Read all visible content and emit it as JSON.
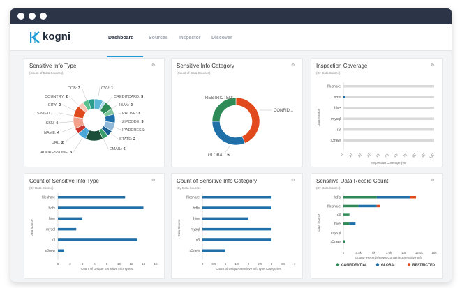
{
  "app": {
    "brand": "kogni"
  },
  "tabs": [
    {
      "label": "Dashboard",
      "active": true
    },
    {
      "label": "Sources",
      "active": false
    },
    {
      "label": "Inspector",
      "active": false
    },
    {
      "label": "Discover",
      "active": false
    }
  ],
  "colors": {
    "accent": "#1e9bd7",
    "titlebar": "#2c3547",
    "confidential": "#2e8b57",
    "global": "#1f6fa8",
    "restricted": "#e04a1c",
    "bar": "#1f6fa8"
  },
  "icons": {
    "settings": "gear-icon"
  },
  "cards": {
    "sensitive_info_type": {
      "title": "Sensitive Info Type",
      "subtitle": "(Count of Data Sources)"
    },
    "sensitive_info_category": {
      "title": "Sensitive Info Category",
      "subtitle": "(Count of Data Sources)"
    },
    "inspection_coverage": {
      "title": "Inspection Coverage",
      "subtitle": "(By Data Source)"
    },
    "count_sensitive_info_type": {
      "title": "Count of Sensitive Info Type",
      "subtitle": "(By Data Source)"
    },
    "count_sensitive_info_category": {
      "title": "Count of Sensitive Info Category",
      "subtitle": "(By Data Source)"
    },
    "sensitive_record_count": {
      "title": "Sensitive Data Record Count",
      "subtitle": "(By Data Source)"
    }
  },
  "chart_data": [
    {
      "id": "info_type",
      "type": "pie",
      "title": "Sensitive Info Type",
      "labels": [
        {
          "text": "DOB:",
          "value": "3"
        },
        {
          "text": "CVV:",
          "value": "1"
        },
        {
          "text": "COUNTRY:",
          "value": "2"
        },
        {
          "text": "CREDITCARD:",
          "value": "3"
        },
        {
          "text": "CITY:",
          "value": "2"
        },
        {
          "text": "IBAN:",
          "value": "2"
        },
        {
          "text": "SWIFTCO...",
          "value": ""
        },
        {
          "text": "PHONE:",
          "value": "3"
        },
        {
          "text": "SSN:",
          "value": "4"
        },
        {
          "text": "ZIPCODE:",
          "value": "3"
        },
        {
          "text": "NAME:",
          "value": "4"
        },
        {
          "text": "IPADDRESS:",
          "value": ""
        },
        {
          "text": "URL:",
          "value": "2"
        },
        {
          "text": "STATE:",
          "value": "2"
        },
        {
          "text": "ADDRESSLINE:",
          "value": "3"
        },
        {
          "text": "EMAIL:",
          "value": "6"
        }
      ],
      "slices": [
        {
          "label": "DOB",
          "value": 3,
          "color": "#5cb7d6"
        },
        {
          "label": "CVV",
          "value": 1,
          "color": "#b0d9e8"
        },
        {
          "label": "CREDITCARD",
          "value": 3,
          "color": "#2e8b57"
        },
        {
          "label": "IBAN",
          "value": 2,
          "color": "#7fc69b"
        },
        {
          "label": "PHONE",
          "value": 3,
          "color": "#1f6fa8"
        },
        {
          "label": "ZIPCODE",
          "value": 3,
          "color": "#8fb8d9"
        },
        {
          "label": "IPADDRESS",
          "value": 2,
          "color": "#175e8f"
        },
        {
          "label": "STATE",
          "value": 2,
          "color": "#3a9c6b"
        },
        {
          "label": "EMAIL",
          "value": 6,
          "color": "#1b4f3a"
        },
        {
          "label": "ADDRESSLINE",
          "value": 3,
          "color": "#4aa8d8"
        },
        {
          "label": "URL",
          "value": 2,
          "color": "#c7322a"
        },
        {
          "label": "NAME",
          "value": 4,
          "color": "#f2a089"
        },
        {
          "label": "SSN",
          "value": 4,
          "color": "#e04a1c"
        },
        {
          "label": "SWIFTCODE",
          "value": 2,
          "color": "#f7c5b5"
        },
        {
          "label": "CITY",
          "value": 2,
          "color": "#58c28c"
        },
        {
          "label": "COUNTRY",
          "value": 2,
          "color": "#2a9d8f"
        }
      ]
    },
    {
      "id": "info_category",
      "type": "pie",
      "title": "Sensitive Info Category",
      "labels": [
        {
          "text": "RESTRICTED:",
          "value": ""
        },
        {
          "text": "CONFID...",
          "value": ""
        },
        {
          "text": "GLOBAL:",
          "value": "5"
        }
      ],
      "slices": [
        {
          "label": "CONFIDENTIAL",
          "value": 7,
          "color": "#e04a1c"
        },
        {
          "label": "GLOBAL",
          "value": 5,
          "color": "#1f6fa8"
        },
        {
          "label": "RESTRICTED",
          "value": 4,
          "color": "#2e8b57"
        }
      ]
    },
    {
      "id": "inspection_coverage",
      "type": "bar",
      "categories": [
        "fileshare",
        "hdfs",
        "hive",
        "mysql",
        "s3",
        "s3new"
      ],
      "values": [
        0,
        2,
        0,
        0,
        0,
        0
      ],
      "xlim": [
        0,
        100
      ],
      "ticks": [
        "0",
        "10",
        "20",
        "30",
        "40",
        "50",
        "60",
        "70",
        "80",
        "90",
        "100"
      ],
      "xlabel": "Inspection Coverage (%)",
      "ylabel": "Data Source"
    },
    {
      "id": "count_info_type",
      "type": "bar",
      "categories": [
        "fileshare",
        "hdfs",
        "hive",
        "mysql",
        "s3",
        "s3new"
      ],
      "values": [
        11,
        14,
        4,
        3,
        13,
        1
      ],
      "xlim": [
        0,
        16
      ],
      "ticks": [
        "0",
        "2",
        "4",
        "6",
        "8",
        "10",
        "12",
        "14",
        "16"
      ],
      "xlabel": "Count of Unique Sensitive Info Types",
      "ylabel": "Data Source"
    },
    {
      "id": "count_info_category",
      "type": "bar",
      "categories": [
        "fileshare",
        "hdfs",
        "hive",
        "mysql",
        "s3",
        "s3new"
      ],
      "values": [
        3,
        3,
        2,
        3,
        3,
        1
      ],
      "xlim": [
        0,
        4
      ],
      "ticks": [
        "0",
        "0.5",
        "1",
        "1.5",
        "2",
        "2.5",
        "3",
        "3.5",
        "4"
      ],
      "xlabel": "Count of Unique Sensitive InfoType Categories",
      "ylabel": "Data Source"
    },
    {
      "id": "record_count",
      "type": "bar",
      "categories": [
        "hdfs",
        "fileshare",
        "s3",
        "hive",
        "mysql",
        "s3new"
      ],
      "series": [
        {
          "name": "CONFIDENTIAL",
          "values": [
            5500,
            2500,
            1000,
            1000,
            0,
            300
          ],
          "color": "#2e8b57"
        },
        {
          "name": "GLOBAL",
          "values": [
            5500,
            3000,
            0,
            1000,
            0,
            0
          ],
          "color": "#1f6fa8"
        },
        {
          "name": "RESTRICTED",
          "values": [
            1000,
            500,
            0,
            0,
            0,
            0
          ],
          "color": "#e04a1c"
        }
      ],
      "xlim": [
        0,
        15000
      ],
      "ticks": [
        "0",
        "2.5k",
        "5k",
        "7.5k",
        "10k",
        "12.5k",
        "15k"
      ],
      "xlabel": "Count - Records/Rows Containing Sensitive Info",
      "ylabel": "Data Source"
    }
  ]
}
